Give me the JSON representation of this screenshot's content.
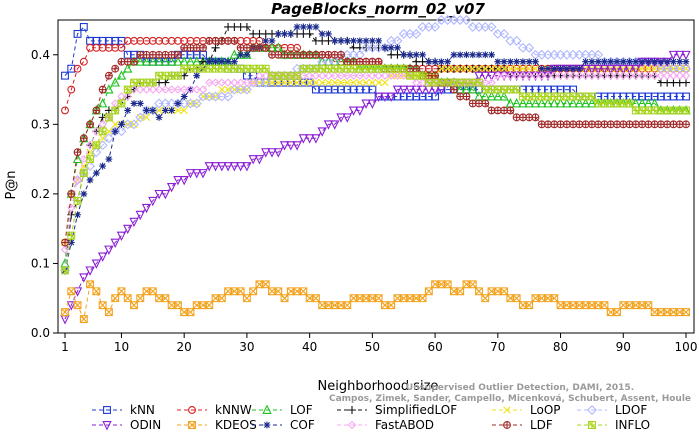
{
  "chart_data": {
    "type": "line",
    "title": "PageBlocks_norm_02_v07",
    "xlabel": "Neighborhood size",
    "ylabel": "P@n",
    "xlim": [
      1,
      100
    ],
    "ylim": [
      0,
      0.44
    ],
    "x_ticks": [
      1,
      10,
      20,
      30,
      40,
      50,
      60,
      70,
      80,
      90,
      100
    ],
    "y_ticks": [
      0.0,
      0.1,
      0.2,
      0.3,
      0.4
    ],
    "y_tick_labels": [
      "0.0",
      "0.1",
      "0.2",
      "0.3",
      "0.4"
    ],
    "grid": false,
    "legend_position": "bottom",
    "watermark": [
      "Unsupervised Outlier Detection, DAMI, 2015.",
      "Campos, Zimek, Sander, Campello, Micenková, Schubert, Assent, Houle"
    ],
    "series": [
      {
        "name": "kNN",
        "color": "#1c39d6",
        "marker": "square",
        "points": [
          [
            1,
            0.37
          ],
          [
            2,
            0.38
          ],
          [
            3,
            0.43
          ],
          [
            4,
            0.44
          ],
          [
            5,
            0.42
          ],
          [
            10,
            0.42
          ],
          [
            11,
            0.4
          ],
          [
            16,
            0.39
          ],
          [
            22,
            0.4
          ],
          [
            28,
            0.38
          ],
          [
            33,
            0.36
          ],
          [
            38,
            0.36
          ],
          [
            43,
            0.35
          ],
          [
            48,
            0.35
          ],
          [
            53,
            0.34
          ],
          [
            58,
            0.34
          ],
          [
            64,
            0.35
          ],
          [
            72,
            0.35
          ],
          [
            80,
            0.35
          ],
          [
            84,
            0.34
          ],
          [
            100,
            0.34
          ]
        ]
      },
      {
        "name": "kNNW",
        "color": "#d42020",
        "marker": "circle",
        "points": [
          [
            1,
            0.32
          ],
          [
            2,
            0.35
          ],
          [
            3,
            0.38
          ],
          [
            4,
            0.39
          ],
          [
            5,
            0.41
          ],
          [
            10,
            0.41
          ],
          [
            12,
            0.42
          ],
          [
            28,
            0.42
          ],
          [
            36,
            0.41
          ],
          [
            41,
            0.4
          ],
          [
            46,
            0.39
          ],
          [
            56,
            0.38
          ],
          [
            66,
            0.38
          ],
          [
            76,
            0.38
          ],
          [
            84,
            0.38
          ],
          [
            100,
            0.38
          ]
        ]
      },
      {
        "name": "LOF",
        "color": "#1ec21e",
        "marker": "triangle-up",
        "points": [
          [
            1,
            0.1
          ],
          [
            2,
            0.2
          ],
          [
            3,
            0.25
          ],
          [
            5,
            0.3
          ],
          [
            8,
            0.35
          ],
          [
            10,
            0.37
          ],
          [
            12,
            0.39
          ],
          [
            16,
            0.39
          ],
          [
            22,
            0.39
          ],
          [
            26,
            0.39
          ],
          [
            32,
            0.41
          ],
          [
            38,
            0.4
          ],
          [
            44,
            0.39
          ],
          [
            50,
            0.38
          ],
          [
            56,
            0.38
          ],
          [
            62,
            0.36
          ],
          [
            68,
            0.34
          ],
          [
            74,
            0.33
          ],
          [
            80,
            0.33
          ],
          [
            90,
            0.33
          ],
          [
            100,
            0.32
          ]
        ]
      },
      {
        "name": "SimplifiedLOF",
        "color": "#111111",
        "marker": "plus",
        "points": [
          [
            1,
            0.09
          ],
          [
            2,
            0.17
          ],
          [
            3,
            0.19
          ],
          [
            5,
            0.27
          ],
          [
            7,
            0.31
          ],
          [
            10,
            0.33
          ],
          [
            13,
            0.36
          ],
          [
            16,
            0.36
          ],
          [
            20,
            0.37
          ],
          [
            24,
            0.39
          ],
          [
            27,
            0.44
          ],
          [
            33,
            0.43
          ],
          [
            38,
            0.43
          ],
          [
            43,
            0.42
          ],
          [
            50,
            0.41
          ],
          [
            55,
            0.4
          ],
          [
            62,
            0.38
          ],
          [
            68,
            0.38
          ],
          [
            74,
            0.37
          ],
          [
            82,
            0.37
          ],
          [
            90,
            0.37
          ],
          [
            100,
            0.36
          ]
        ]
      },
      {
        "name": "LoOP",
        "color": "#f0e21c",
        "marker": "x",
        "points": [
          [
            1,
            0.13
          ],
          [
            2,
            0.2
          ],
          [
            4,
            0.24
          ],
          [
            6,
            0.27
          ],
          [
            9,
            0.3
          ],
          [
            12,
            0.3
          ],
          [
            16,
            0.32
          ],
          [
            20,
            0.32
          ],
          [
            24,
            0.34
          ],
          [
            28,
            0.35
          ],
          [
            34,
            0.36
          ],
          [
            42,
            0.36
          ],
          [
            50,
            0.36
          ],
          [
            56,
            0.37
          ],
          [
            66,
            0.38
          ],
          [
            76,
            0.38
          ],
          [
            84,
            0.38
          ],
          [
            92,
            0.38
          ],
          [
            100,
            0.38
          ]
        ]
      },
      {
        "name": "LDOF",
        "color": "#b0b8ff",
        "marker": "diamond",
        "points": [
          [
            1,
            0.09
          ],
          [
            2,
            0.2
          ],
          [
            4,
            0.23
          ],
          [
            8,
            0.28
          ],
          [
            12,
            0.3
          ],
          [
            16,
            0.33
          ],
          [
            20,
            0.33
          ],
          [
            26,
            0.34
          ],
          [
            32,
            0.36
          ],
          [
            40,
            0.38
          ],
          [
            46,
            0.4
          ],
          [
            52,
            0.41
          ],
          [
            56,
            0.43
          ],
          [
            62,
            0.45
          ],
          [
            68,
            0.44
          ],
          [
            72,
            0.42
          ],
          [
            76,
            0.4
          ],
          [
            82,
            0.4
          ],
          [
            90,
            0.39
          ],
          [
            100,
            0.38
          ]
        ]
      },
      {
        "name": "ODIN",
        "color": "#8a1fd6",
        "marker": "triangle-down",
        "points": [
          [
            1,
            0.02
          ],
          [
            2,
            0.04
          ],
          [
            4,
            0.08
          ],
          [
            6,
            0.1
          ],
          [
            10,
            0.14
          ],
          [
            14,
            0.18
          ],
          [
            18,
            0.21
          ],
          [
            22,
            0.23
          ],
          [
            26,
            0.24
          ],
          [
            30,
            0.24
          ],
          [
            34,
            0.26
          ],
          [
            38,
            0.27
          ],
          [
            42,
            0.29
          ],
          [
            46,
            0.31
          ],
          [
            50,
            0.33
          ],
          [
            52,
            0.34
          ],
          [
            56,
            0.35
          ],
          [
            60,
            0.35
          ],
          [
            64,
            0.36
          ],
          [
            70,
            0.37
          ],
          [
            76,
            0.37
          ],
          [
            82,
            0.38
          ],
          [
            90,
            0.38
          ],
          [
            96,
            0.39
          ],
          [
            100,
            0.4
          ]
        ]
      },
      {
        "name": "KDEOS",
        "color": "#f2a21c",
        "marker": "square-x",
        "points": [
          [
            1,
            0.03
          ],
          [
            2,
            0.06
          ],
          [
            3,
            0.04
          ],
          [
            4,
            0.02
          ],
          [
            5,
            0.07
          ],
          [
            6,
            0.06
          ],
          [
            7,
            0.04
          ],
          [
            8,
            0.03
          ],
          [
            9,
            0.05
          ],
          [
            10,
            0.06
          ],
          [
            11,
            0.05
          ],
          [
            12,
            0.04
          ],
          [
            14,
            0.06
          ],
          [
            16,
            0.05
          ],
          [
            18,
            0.04
          ],
          [
            20,
            0.03
          ],
          [
            24,
            0.04
          ],
          [
            26,
            0.05
          ],
          [
            28,
            0.06
          ],
          [
            30,
            0.05
          ],
          [
            32,
            0.07
          ],
          [
            34,
            0.06
          ],
          [
            36,
            0.05
          ],
          [
            38,
            0.06
          ],
          [
            40,
            0.05
          ],
          [
            42,
            0.04
          ],
          [
            46,
            0.04
          ],
          [
            48,
            0.05
          ],
          [
            50,
            0.05
          ],
          [
            52,
            0.04
          ],
          [
            56,
            0.05
          ],
          [
            58,
            0.05
          ],
          [
            60,
            0.07
          ],
          [
            64,
            0.06
          ],
          [
            66,
            0.07
          ],
          [
            68,
            0.05
          ],
          [
            70,
            0.06
          ],
          [
            74,
            0.04
          ],
          [
            78,
            0.05
          ],
          [
            80,
            0.04
          ],
          [
            84,
            0.04
          ],
          [
            86,
            0.04
          ],
          [
            88,
            0.03
          ],
          [
            92,
            0.04
          ],
          [
            96,
            0.03
          ],
          [
            100,
            0.03
          ]
        ]
      },
      {
        "name": "COF",
        "color": "#1a2a8c",
        "marker": "asterisk",
        "points": [
          [
            1,
            0.09
          ],
          [
            2,
            0.13
          ],
          [
            3,
            0.17
          ],
          [
            4,
            0.2
          ],
          [
            5,
            0.22
          ],
          [
            6,
            0.23
          ],
          [
            7,
            0.24
          ],
          [
            8,
            0.25
          ],
          [
            9,
            0.29
          ],
          [
            10,
            0.3
          ],
          [
            12,
            0.33
          ],
          [
            14,
            0.32
          ],
          [
            16,
            0.31
          ],
          [
            18,
            0.32
          ],
          [
            20,
            0.34
          ],
          [
            24,
            0.39
          ],
          [
            28,
            0.39
          ],
          [
            32,
            0.41
          ],
          [
            36,
            0.43
          ],
          [
            40,
            0.44
          ],
          [
            44,
            0.42
          ],
          [
            50,
            0.42
          ],
          [
            56,
            0.4
          ],
          [
            60,
            0.39
          ],
          [
            66,
            0.4
          ],
          [
            72,
            0.39
          ],
          [
            80,
            0.38
          ],
          [
            88,
            0.39
          ],
          [
            96,
            0.39
          ],
          [
            100,
            0.39
          ]
        ]
      },
      {
        "name": "FastABOD",
        "color": "#f7a8f0",
        "marker": "diamond-sm",
        "points": [
          [
            1,
            0.12
          ],
          [
            2,
            0.18
          ],
          [
            4,
            0.25
          ],
          [
            6,
            0.29
          ],
          [
            8,
            0.31
          ],
          [
            10,
            0.34
          ],
          [
            14,
            0.35
          ],
          [
            18,
            0.35
          ],
          [
            22,
            0.35
          ],
          [
            26,
            0.36
          ],
          [
            30,
            0.36
          ],
          [
            34,
            0.37
          ],
          [
            40,
            0.37
          ],
          [
            46,
            0.37
          ],
          [
            52,
            0.37
          ],
          [
            60,
            0.36
          ],
          [
            66,
            0.36
          ],
          [
            74,
            0.37
          ],
          [
            82,
            0.37
          ],
          [
            90,
            0.37
          ],
          [
            100,
            0.37
          ]
        ]
      },
      {
        "name": "LDF",
        "color": "#a32a2a",
        "marker": "circle-plus",
        "points": [
          [
            1,
            0.13
          ],
          [
            2,
            0.2
          ],
          [
            3,
            0.26
          ],
          [
            5,
            0.3
          ],
          [
            7,
            0.35
          ],
          [
            9,
            0.38
          ],
          [
            11,
            0.39
          ],
          [
            14,
            0.4
          ],
          [
            18,
            0.4
          ],
          [
            22,
            0.41
          ],
          [
            26,
            0.42
          ],
          [
            30,
            0.41
          ],
          [
            36,
            0.4
          ],
          [
            42,
            0.4
          ],
          [
            48,
            0.39
          ],
          [
            54,
            0.38
          ],
          [
            60,
            0.37
          ],
          [
            64,
            0.34
          ],
          [
            70,
            0.32
          ],
          [
            74,
            0.31
          ],
          [
            78,
            0.3
          ],
          [
            84,
            0.3
          ],
          [
            90,
            0.3
          ],
          [
            100,
            0.3
          ]
        ]
      },
      {
        "name": "INFLO",
        "color": "#a8d41c",
        "marker": "square-star",
        "points": [
          [
            1,
            0.09
          ],
          [
            2,
            0.14
          ],
          [
            4,
            0.23
          ],
          [
            6,
            0.27
          ],
          [
            8,
            0.31
          ],
          [
            10,
            0.33
          ],
          [
            12,
            0.36
          ],
          [
            14,
            0.36
          ],
          [
            18,
            0.37
          ],
          [
            22,
            0.38
          ],
          [
            26,
            0.38
          ],
          [
            30,
            0.38
          ],
          [
            36,
            0.37
          ],
          [
            42,
            0.38
          ],
          [
            48,
            0.38
          ],
          [
            54,
            0.38
          ],
          [
            60,
            0.36
          ],
          [
            64,
            0.36
          ],
          [
            70,
            0.35
          ],
          [
            76,
            0.34
          ],
          [
            82,
            0.34
          ],
          [
            88,
            0.33
          ],
          [
            94,
            0.32
          ],
          [
            100,
            0.32
          ]
        ]
      }
    ]
  }
}
